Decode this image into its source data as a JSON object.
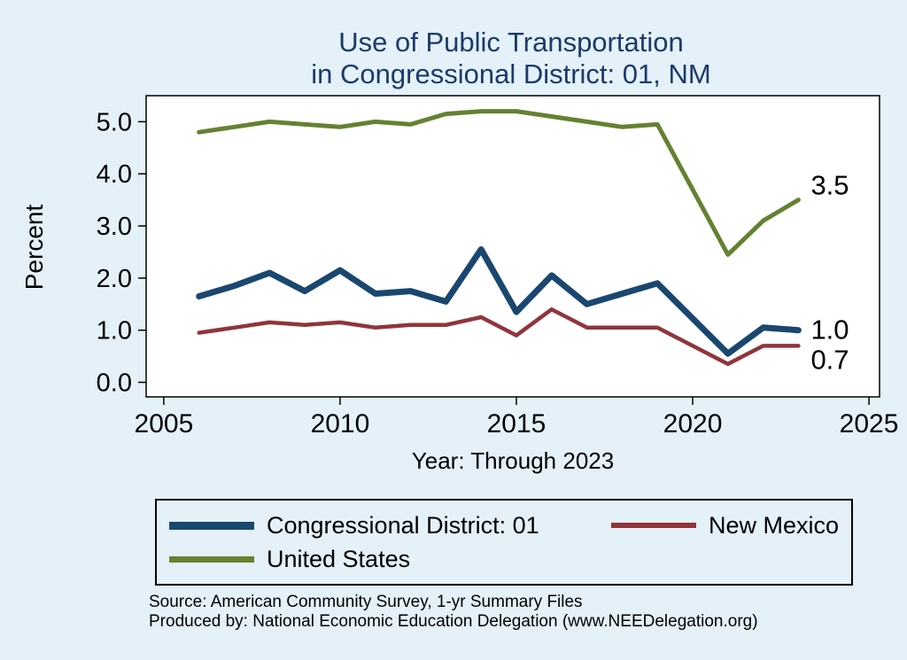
{
  "page": {
    "background": "#e4f1f8",
    "title_line1": "Use of Public Transportation",
    "title_line2": "in Congressional District: 01, NM",
    "title_color": "#1b3a6b"
  },
  "chart_data": {
    "type": "line",
    "title": "Use of Public Transportation in Congressional District: 01, NM",
    "xlabel": "Year: Through 2023",
    "ylabel": "Percent",
    "xlim": [
      2004.5,
      2025.3
    ],
    "ylim": [
      -0.28,
      5.5
    ],
    "xticks": [
      2005,
      2010,
      2015,
      2020,
      2025
    ],
    "yticks": [
      "0.0",
      "1.0",
      "2.0",
      "3.0",
      "4.0",
      "5.0"
    ],
    "grid": false,
    "legend_position": "bottom",
    "x": [
      2006,
      2007,
      2008,
      2009,
      2010,
      2011,
      2012,
      2013,
      2014,
      2015,
      2016,
      2017,
      2018,
      2019,
      2021,
      2022,
      2023
    ],
    "series": [
      {
        "name": "Congressional District: 01",
        "color": "#1a476f",
        "width": 7,
        "end_label": "1.0",
        "values": [
          1.65,
          1.85,
          2.1,
          1.75,
          2.15,
          1.7,
          1.75,
          1.55,
          2.55,
          1.35,
          2.05,
          1.5,
          1.7,
          1.9,
          0.55,
          1.05,
          1.0
        ]
      },
      {
        "name": "New Mexico",
        "color": "#90353b",
        "width": 4.5,
        "end_label": "0.7",
        "values": [
          0.95,
          1.05,
          1.15,
          1.1,
          1.15,
          1.05,
          1.1,
          1.1,
          1.25,
          0.9,
          1.4,
          1.05,
          1.05,
          1.05,
          0.35,
          0.7,
          0.7
        ]
      },
      {
        "name": "United States",
        "color": "#648232",
        "width": 5,
        "end_label": "3.5",
        "values": [
          4.8,
          4.9,
          5.0,
          4.95,
          4.9,
          5.0,
          4.95,
          5.15,
          5.2,
          5.2,
          5.1,
          5.0,
          4.9,
          4.95,
          2.45,
          3.1,
          3.5
        ]
      }
    ]
  },
  "footer": {
    "line1": "Source: American Community Survey, 1-yr Summary Files",
    "line2": "Produced by: National Economic Education Delegation (www.NEEDelegation.org)"
  }
}
